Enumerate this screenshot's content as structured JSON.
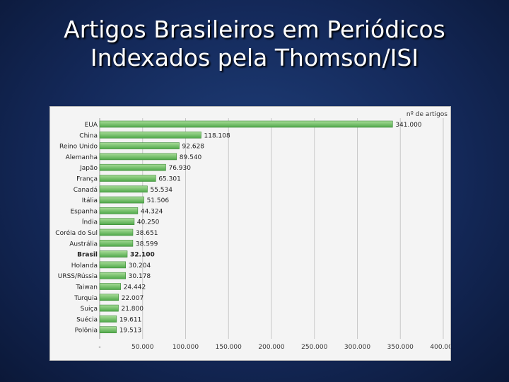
{
  "slide": {
    "title_line1": "Artigos Brasileiros em Periódicos",
    "title_line2": "Indexados pela Thomson/ISI"
  },
  "chart_data": {
    "type": "bar",
    "orientation": "horizontal",
    "series_label": "nº de artigos",
    "categories": [
      "EUA",
      "China",
      "Reino Unido",
      "Alemanha",
      "Japão",
      "França",
      "Canadá",
      "Itália",
      "Espanha",
      "Índia",
      "Coréia do Sul",
      "Austrália",
      "Brasil",
      "Holanda",
      "URSS/Rússia",
      "Taiwan",
      "Turquia",
      "Suiça",
      "Suécia",
      "Polônia"
    ],
    "values": [
      341000,
      118108,
      92628,
      89540,
      76930,
      65301,
      55534,
      51506,
      44324,
      40250,
      38651,
      38599,
      32100,
      30204,
      30178,
      24442,
      22007,
      21800,
      19611,
      19513
    ],
    "value_labels": [
      "341.000",
      "118.108",
      "92.628",
      "89.540",
      "76.930",
      "65.301",
      "55.534",
      "51.506",
      "44.324",
      "40.250",
      "38.651",
      "38.599",
      "32.100",
      "30.204",
      "30.178",
      "24.442",
      "22.007",
      "21.800",
      "19.611",
      "19.513"
    ],
    "highlight_category": "Brasil",
    "xlim": [
      0,
      400000
    ],
    "xticks": [
      0,
      50000,
      100000,
      150000,
      200000,
      250000,
      300000,
      350000,
      400000
    ],
    "xtick_labels": [
      "-",
      "50.000",
      "100.000",
      "150.000",
      "200.000",
      "250.000",
      "300.000",
      "350.000",
      "400.000"
    ],
    "grid": true,
    "bar_color": "#4fa84a",
    "bar_color_light": "#a8dc98"
  }
}
